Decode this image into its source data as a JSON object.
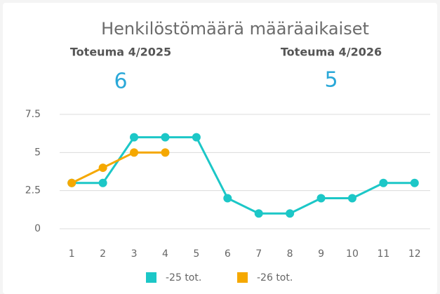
{
  "chart_data": {
    "type": "line",
    "title": "Henkilöstömäärä määräaikaiset",
    "kpis": [
      {
        "label": "Toteuma 4/2025",
        "value": 6
      },
      {
        "label": "Toteuma 4/2026",
        "value": 5
      }
    ],
    "categories": [
      "1",
      "2",
      "3",
      "4",
      "5",
      "6",
      "7",
      "8",
      "9",
      "10",
      "11",
      "12"
    ],
    "series": [
      {
        "name": "-25 tot.",
        "color": "#1cc7c7",
        "values": [
          3,
          3,
          6,
          6,
          6,
          2,
          1,
          1,
          2,
          2,
          3,
          3
        ]
      },
      {
        "name": "-26 tot.",
        "color": "#f5a800",
        "values": [
          3,
          4,
          5,
          5,
          null,
          null,
          null,
          null,
          null,
          null,
          null,
          null
        ]
      }
    ],
    "ylim": [
      0,
      7.5
    ],
    "yticks": [
      0,
      2.5,
      5,
      7.5
    ],
    "grid": true
  }
}
